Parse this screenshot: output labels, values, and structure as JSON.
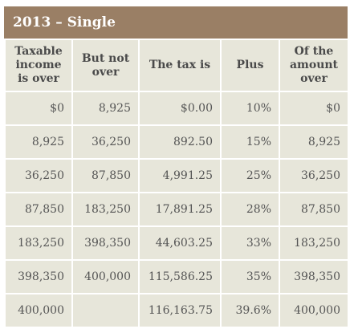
{
  "title": "2013 – Single",
  "columns": [
    "Taxable income is over",
    "But not over",
    "The tax is",
    "Plus",
    "Of the amount over"
  ],
  "rows": [
    [
      "$0",
      "8,925",
      "$0.00",
      "10%",
      "$0"
    ],
    [
      "8,925",
      "36,250",
      "892.50",
      "15%",
      "8,925"
    ],
    [
      "36,250",
      "87,850",
      "4,991.25",
      "25%",
      "36,250"
    ],
    [
      "87,850",
      "183,250",
      "17,891.25",
      "28%",
      "87,850"
    ],
    [
      "183,250",
      "398,350",
      "44,603.25",
      "33%",
      "183,250"
    ],
    [
      "398,350",
      "400,000",
      "115,586.25",
      "35%",
      "398,350"
    ],
    [
      "400,000",
      "",
      "116,163.75",
      "39.6%",
      "400,000"
    ]
  ],
  "colors": {
    "header": "#9a7f65",
    "cell": "#e7e6da"
  }
}
